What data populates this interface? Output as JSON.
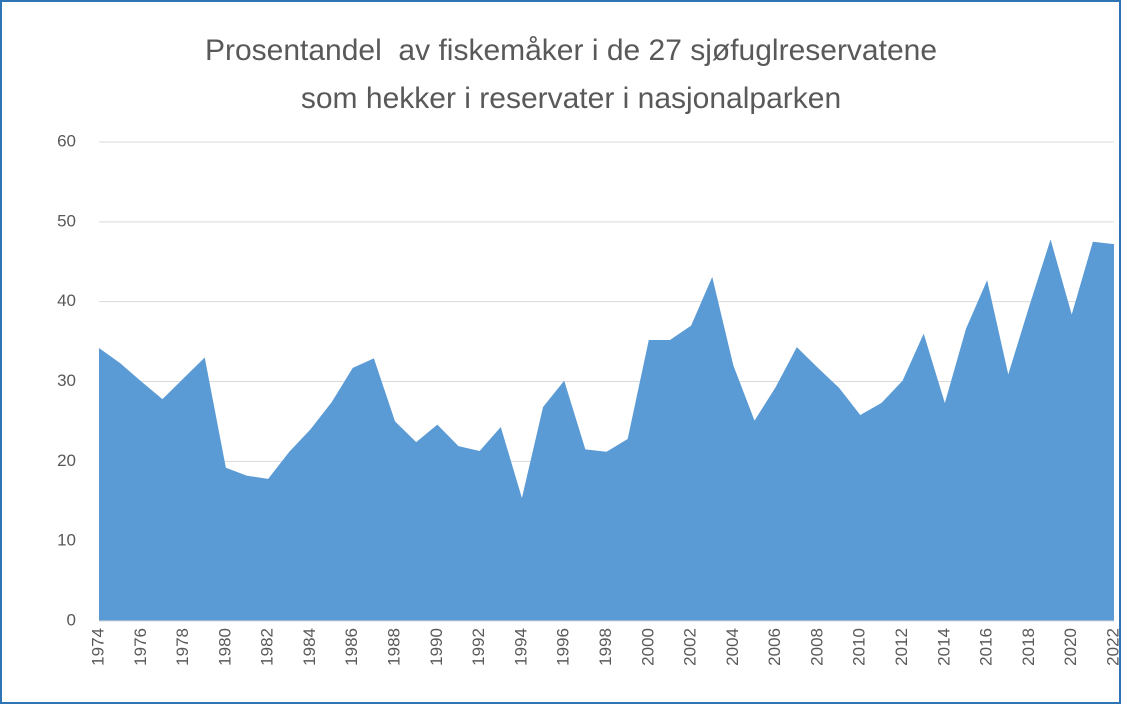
{
  "chart_data": {
    "type": "area",
    "title": [
      "Prosentandel  av fiskemåker i de 27 sjøfuglreservatene",
      "som hekker i reservater i nasjonalparken"
    ],
    "x": [
      1974,
      1975,
      1976,
      1977,
      1978,
      1979,
      1980,
      1981,
      1982,
      1983,
      1984,
      1985,
      1986,
      1987,
      1988,
      1989,
      1990,
      1991,
      1992,
      1993,
      1994,
      1995,
      1996,
      1997,
      1998,
      1999,
      2000,
      2001,
      2002,
      2003,
      2004,
      2005,
      2006,
      2007,
      2008,
      2009,
      2010,
      2011,
      2012,
      2013,
      2014,
      2015,
      2016,
      2017,
      2018,
      2019,
      2020,
      2021,
      2022
    ],
    "values": [
      34.2,
      32.3,
      30,
      27.8,
      30.4,
      33,
      19.2,
      18.2,
      17.8,
      21.2,
      24,
      27.4,
      31.7,
      32.9,
      25,
      22.4,
      24.6,
      21.9,
      21.3,
      24.3,
      15.4,
      26.8,
      30.1,
      21.5,
      21.2,
      22.8,
      35.2,
      35.2,
      37,
      43.1,
      32,
      25.1,
      29.3,
      34.3,
      31.7,
      29.2,
      25.8,
      27.3,
      30.1,
      36,
      27.3,
      36.6,
      42.7,
      30.9,
      39.5,
      47.8,
      38.4,
      47.5,
      47.2
    ],
    "color": "#5b9bd5",
    "xlim": [
      1974,
      2022
    ],
    "xticks": [
      1974,
      1976,
      1978,
      1980,
      1982,
      1984,
      1986,
      1988,
      1990,
      1992,
      1994,
      1996,
      1998,
      2000,
      2002,
      2004,
      2006,
      2008,
      2010,
      2012,
      2014,
      2016,
      2018,
      2020,
      2022
    ],
    "ylim": [
      0,
      60
    ],
    "yticks": [
      0,
      10,
      20,
      30,
      40,
      50,
      60
    ],
    "grid": true
  }
}
